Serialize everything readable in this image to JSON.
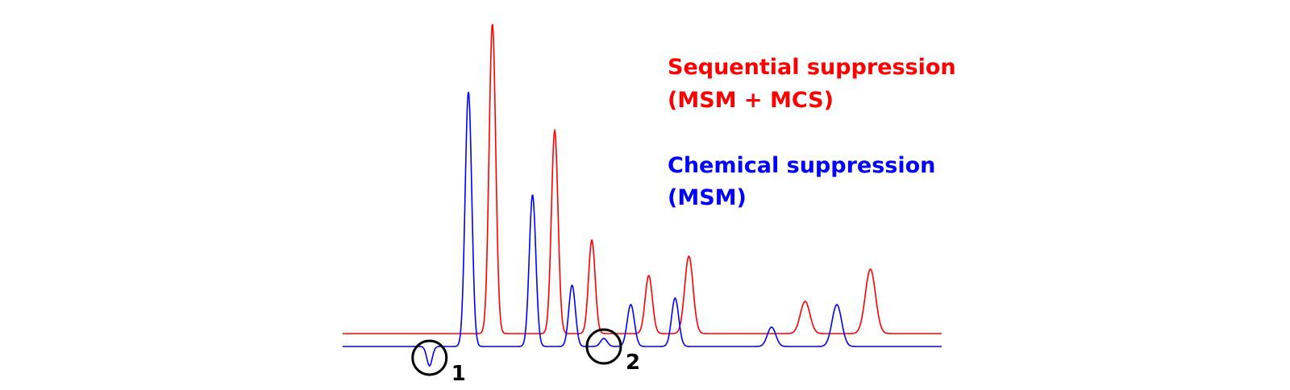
{
  "chart_data": {
    "type": "line",
    "title": "",
    "xlabel": "",
    "ylabel": "",
    "grid": false,
    "axes_visible": false,
    "xlim": [
      0,
      100
    ],
    "ylim": [
      -3,
      100
    ],
    "series": [
      {
        "name": "Sequential suppression (MSM + MCS)",
        "label_lines": [
          "Sequential suppression",
          "(MSM + MCS)"
        ],
        "color": "#ff0000",
        "baseline": 4,
        "peaks": [
          {
            "x": 25.0,
            "height": 96,
            "width": 0.55
          },
          {
            "x": 35.4,
            "height": 63,
            "width": 0.55
          },
          {
            "x": 41.6,
            "height": 29,
            "width": 0.55
          },
          {
            "x": 51.1,
            "height": 18,
            "width": 0.6
          },
          {
            "x": 57.8,
            "height": 24,
            "width": 0.7
          },
          {
            "x": 77.2,
            "height": 10,
            "width": 0.8
          },
          {
            "x": 88.1,
            "height": 20,
            "width": 0.85
          }
        ]
      },
      {
        "name": "Chemical suppression (MSM)",
        "label_lines": [
          "Chemical suppression",
          "(MSM)"
        ],
        "color": "#0000ff",
        "baseline": 0,
        "peaks": [
          {
            "x": 14.5,
            "height": -6,
            "width": 0.45
          },
          {
            "x": 21.0,
            "height": 79,
            "width": 0.55
          },
          {
            "x": 31.7,
            "height": 47,
            "width": 0.55
          },
          {
            "x": 38.3,
            "height": 19,
            "width": 0.55
          },
          {
            "x": 43.6,
            "height": 2.5,
            "width": 0.55
          },
          {
            "x": 48.1,
            "height": 13,
            "width": 0.6
          },
          {
            "x": 55.5,
            "height": 15,
            "width": 0.6
          },
          {
            "x": 71.6,
            "height": 6,
            "width": 0.7
          },
          {
            "x": 82.5,
            "height": 13,
            "width": 0.8
          }
        ]
      }
    ],
    "annotations": [
      {
        "label": "1",
        "x": 14.5,
        "y": -3
      },
      {
        "label": "2",
        "x": 43.6,
        "y": 0.5
      }
    ]
  }
}
